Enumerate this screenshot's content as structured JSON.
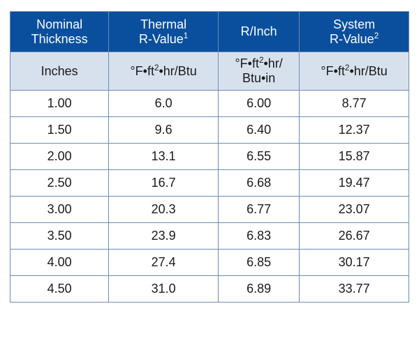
{
  "table": {
    "header_bg": "#0a4f9e",
    "header_fg": "#ffffff",
    "units_bg": "#d7e1ee",
    "units_fg": "#1a1a1a",
    "body_fg": "#1a1a1a",
    "border_color": "#6d8bb3",
    "columns": [
      {
        "header_html": "Nominal<br>Thickness",
        "unit_html": "Inches"
      },
      {
        "header_html": "Thermal<br>R-Value<sup>1</sup>",
        "unit_html": "°F•ft<sup>2</sup>•hr/Btu"
      },
      {
        "header_html": "R/Inch",
        "unit_html": "°F•ft<sup>2</sup>•hr/<br>Btu•in"
      },
      {
        "header_html": "System<br>R-Value<sup>2</sup>",
        "unit_html": "°F•ft<sup>2</sup>•hr/Btu"
      }
    ],
    "rows": [
      [
        "1.00",
        "6.0",
        "6.00",
        "8.77"
      ],
      [
        "1.50",
        "9.6",
        "6.40",
        "12.37"
      ],
      [
        "2.00",
        "13.1",
        "6.55",
        "15.87"
      ],
      [
        "2.50",
        "16.7",
        "6.68",
        "19.47"
      ],
      [
        "3.00",
        "20.3",
        "6.77",
        "23.07"
      ],
      [
        "3.50",
        "23.9",
        "6.83",
        "26.67"
      ],
      [
        "4.00",
        "27.4",
        "6.85",
        "30.17"
      ],
      [
        "4.50",
        "31.0",
        "6.89",
        "33.77"
      ]
    ]
  }
}
